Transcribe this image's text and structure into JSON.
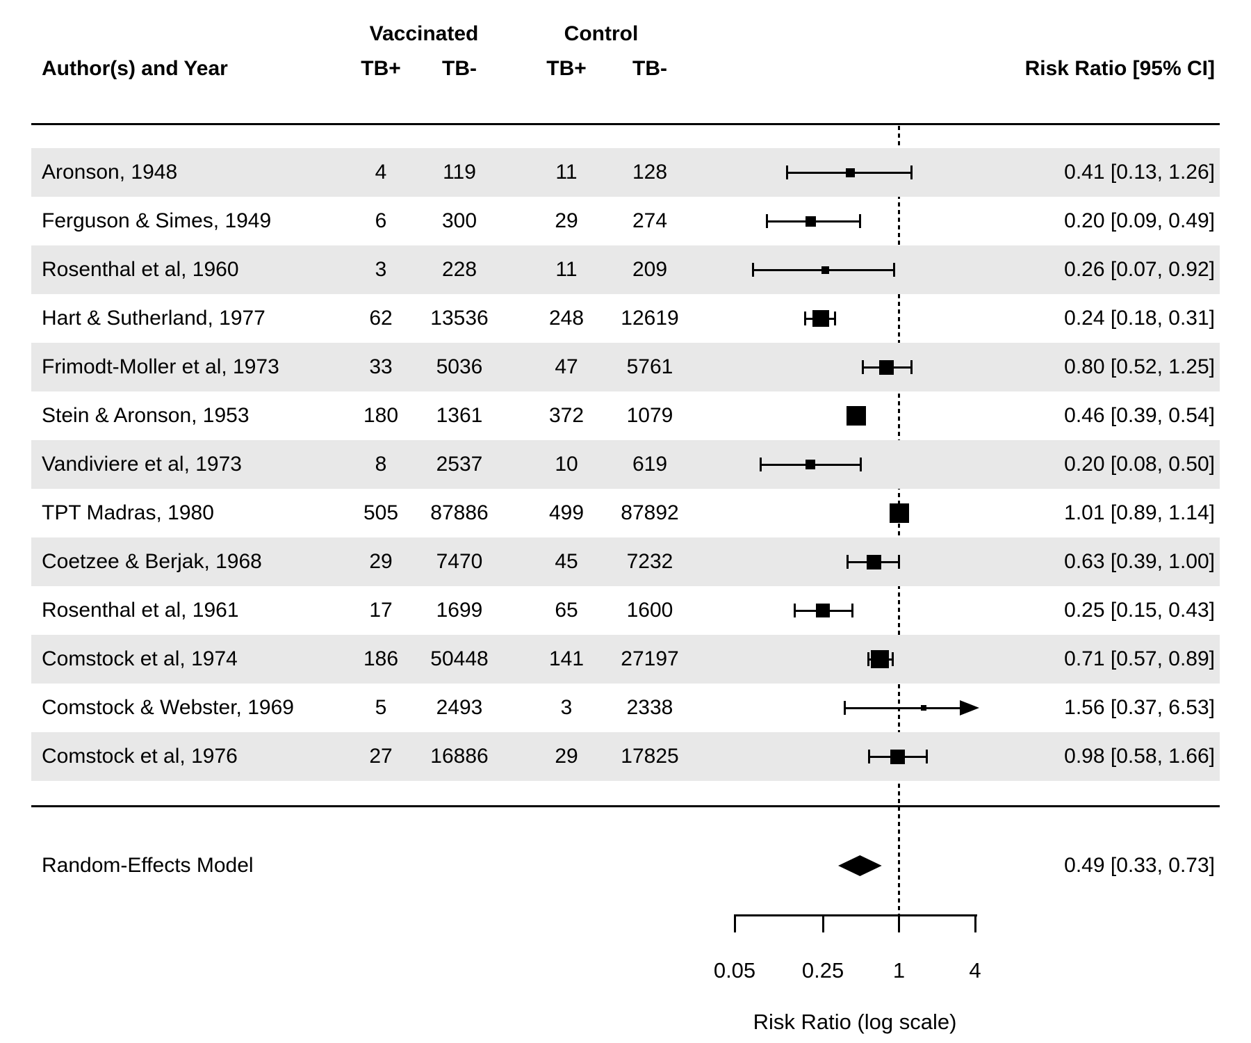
{
  "figure": {
    "background": "#ffffff",
    "stripe_color": "#e8e8e8",
    "ink_color": "#000000"
  },
  "header": {
    "group1": "Vaccinated",
    "group2": "Control",
    "author_col": "Author(s) and Year",
    "sub_cols": [
      "TB+",
      "TB-",
      "TB+",
      "TB-"
    ],
    "rr_col": "Risk Ratio [95% CI]"
  },
  "chart_data": {
    "type": "forest",
    "x_scale": "log",
    "xlim": [
      0.05,
      4
    ],
    "x_ticks": [
      0.05,
      0.25,
      1,
      4
    ],
    "x_tick_labels": [
      "0.05",
      "0.25",
      "1",
      "4"
    ],
    "xlabel": "Risk Ratio (log scale)",
    "reference_line": 1,
    "studies": [
      {
        "author": "Aronson, 1948",
        "vacc_tb_pos": "4",
        "vacc_tb_neg": "119",
        "ctrl_tb_pos": "11",
        "ctrl_tb_neg": "128",
        "rr": 0.41,
        "ci_low": 0.13,
        "ci_high": 1.26,
        "display": "0.41 [0.13, 1.26]",
        "size": 13,
        "arrow": false
      },
      {
        "author": "Ferguson & Simes, 1949",
        "vacc_tb_pos": "6",
        "vacc_tb_neg": "300",
        "ctrl_tb_pos": "29",
        "ctrl_tb_neg": "274",
        "rr": 0.2,
        "ci_low": 0.09,
        "ci_high": 0.49,
        "display": "0.20 [0.09, 0.49]",
        "size": 15,
        "arrow": false
      },
      {
        "author": "Rosenthal et al, 1960",
        "vacc_tb_pos": "3",
        "vacc_tb_neg": "228",
        "ctrl_tb_pos": "11",
        "ctrl_tb_neg": "209",
        "rr": 0.26,
        "ci_low": 0.07,
        "ci_high": 0.92,
        "display": "0.26 [0.07, 0.92]",
        "size": 11,
        "arrow": false
      },
      {
        "author": "Hart & Sutherland, 1977",
        "vacc_tb_pos": "62",
        "vacc_tb_neg": "13536",
        "ctrl_tb_pos": "248",
        "ctrl_tb_neg": "12619",
        "rr": 0.24,
        "ci_low": 0.18,
        "ci_high": 0.31,
        "display": "0.24 [0.18, 0.31]",
        "size": 24,
        "arrow": false
      },
      {
        "author": "Frimodt-Moller et al, 1973",
        "vacc_tb_pos": "33",
        "vacc_tb_neg": "5036",
        "ctrl_tb_pos": "47",
        "ctrl_tb_neg": "5761",
        "rr": 0.8,
        "ci_low": 0.52,
        "ci_high": 1.25,
        "display": "0.80 [0.52, 1.25]",
        "size": 21,
        "arrow": false
      },
      {
        "author": "Stein & Aronson, 1953",
        "vacc_tb_pos": "180",
        "vacc_tb_neg": "1361",
        "ctrl_tb_pos": "372",
        "ctrl_tb_neg": "1079",
        "rr": 0.46,
        "ci_low": 0.39,
        "ci_high": 0.54,
        "display": "0.46 [0.39, 0.54]",
        "size": 28,
        "arrow": false
      },
      {
        "author": "Vandiviere et al, 1973",
        "vacc_tb_pos": "8",
        "vacc_tb_neg": "2537",
        "ctrl_tb_pos": "10",
        "ctrl_tb_neg": "619",
        "rr": 0.2,
        "ci_low": 0.08,
        "ci_high": 0.5,
        "display": "0.20 [0.08, 0.50]",
        "size": 14,
        "arrow": false
      },
      {
        "author": "TPT Madras, 1980",
        "vacc_tb_pos": "505",
        "vacc_tb_neg": "87886",
        "ctrl_tb_pos": "499",
        "ctrl_tb_neg": "87892",
        "rr": 1.01,
        "ci_low": 0.89,
        "ci_high": 1.14,
        "display": "1.01 [0.89, 1.14]",
        "size": 28,
        "arrow": false
      },
      {
        "author": "Coetzee & Berjak, 1968",
        "vacc_tb_pos": "29",
        "vacc_tb_neg": "7470",
        "ctrl_tb_pos": "45",
        "ctrl_tb_neg": "7232",
        "rr": 0.63,
        "ci_low": 0.39,
        "ci_high": 1.0,
        "display": "0.63 [0.39, 1.00]",
        "size": 21,
        "arrow": false
      },
      {
        "author": "Rosenthal et al, 1961",
        "vacc_tb_pos": "17",
        "vacc_tb_neg": "1699",
        "ctrl_tb_pos": "65",
        "ctrl_tb_neg": "1600",
        "rr": 0.25,
        "ci_low": 0.15,
        "ci_high": 0.43,
        "display": "0.25 [0.15, 0.43]",
        "size": 20,
        "arrow": false
      },
      {
        "author": "Comstock et al, 1974",
        "vacc_tb_pos": "186",
        "vacc_tb_neg": "50448",
        "ctrl_tb_pos": "141",
        "ctrl_tb_neg": "27197",
        "rr": 0.71,
        "ci_low": 0.57,
        "ci_high": 0.89,
        "display": "0.71 [0.57, 0.89]",
        "size": 26,
        "arrow": false
      },
      {
        "author": "Comstock & Webster, 1969",
        "vacc_tb_pos": "5",
        "vacc_tb_neg": "2493",
        "ctrl_tb_pos": "3",
        "ctrl_tb_neg": "2338",
        "rr": 1.56,
        "ci_low": 0.37,
        "ci_high": 6.53,
        "display": "1.56 [0.37, 6.53]",
        "size": 8,
        "arrow": true
      },
      {
        "author": "Comstock et al, 1976",
        "vacc_tb_pos": "27",
        "vacc_tb_neg": "16886",
        "ctrl_tb_pos": "29",
        "ctrl_tb_neg": "17825",
        "rr": 0.98,
        "ci_low": 0.58,
        "ci_high": 1.66,
        "display": "0.98 [0.58, 1.66]",
        "size": 21,
        "arrow": false
      }
    ],
    "summary": {
      "label": "Random-Effects Model",
      "rr": 0.49,
      "ci_low": 0.33,
      "ci_high": 0.73,
      "display": "0.49 [0.33, 0.73]"
    }
  }
}
